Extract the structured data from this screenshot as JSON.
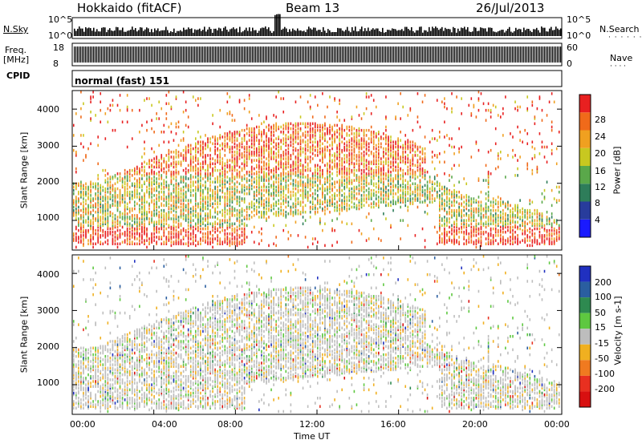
{
  "header": {
    "station": "Hokkaido (fitACF)",
    "beam": "Beam 13",
    "date": "26/Jul/2013"
  },
  "status_panels": {
    "nsky_label": "N.Sky",
    "nsky_ticks": [
      "10^5",
      "10^0"
    ],
    "nsearch_label": "N.Search",
    "freq_label_line1": "Freq.",
    "freq_label_line2": "[MHz]",
    "freq_ticks": [
      "18",
      "8"
    ],
    "nave_ticks": [
      "60",
      "0"
    ],
    "nave_label": "Nave",
    "cpid_label": "CPID",
    "cpid_text": "normal (fast) 151"
  },
  "chart_data": [
    {
      "type": "heatmap",
      "name": "power",
      "ylabel": "Slant Range [km]",
      "y_ticks": [
        "1000",
        "2000",
        "3000",
        "4000"
      ],
      "ylim": [
        200,
        4500
      ],
      "colorbar_label": "Power [dB]",
      "colorbar_ticks": [
        "4",
        "8",
        "12",
        "16",
        "20",
        "24",
        "28"
      ],
      "colorbar_colors": [
        "#1a1aff",
        "#283c9c",
        "#2e7d5a",
        "#5aa84a",
        "#c8c820",
        "#f0a020",
        "#f06a1a",
        "#e82020"
      ]
    },
    {
      "type": "heatmap",
      "name": "velocity",
      "ylabel": "Slant Range [km]",
      "y_ticks": [
        "1000",
        "2000",
        "3000",
        "4000"
      ],
      "ylim": [
        200,
        4500
      ],
      "colorbar_label": "Velocity [m s-1]",
      "colorbar_ticks": [
        "200",
        "100",
        "50",
        "15",
        "-15",
        "-50",
        "-100",
        "-200"
      ],
      "colorbar_colors": [
        "#2030c0",
        "#2a5ea0",
        "#2e8a50",
        "#5ec840",
        "#bdbdbd",
        "#f0b020",
        "#f07a20",
        "#e83020",
        "#d81010"
      ]
    }
  ],
  "x_axis": {
    "ticks": [
      "00:00",
      "04:00",
      "08:00",
      "12:00",
      "16:00",
      "20:00",
      "00:00"
    ],
    "label": "Time UT"
  }
}
